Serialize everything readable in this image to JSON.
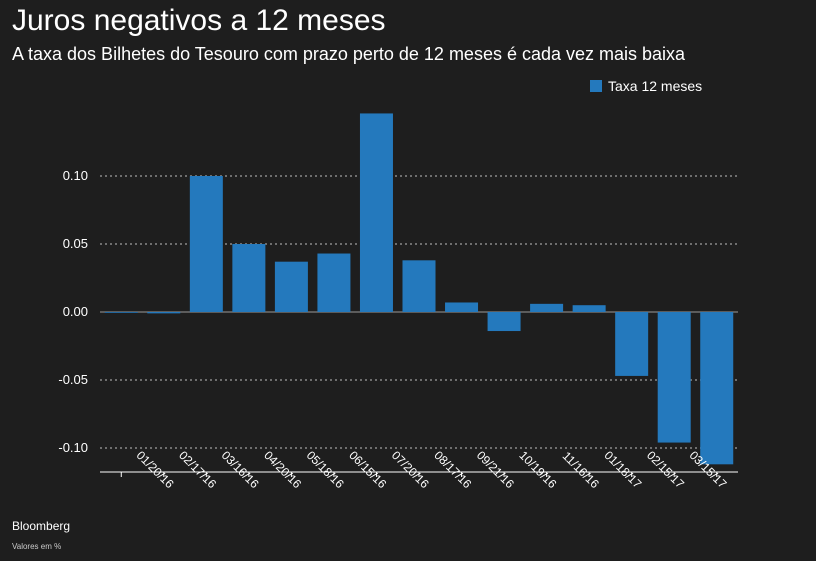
{
  "chart_data": {
    "type": "bar",
    "title": "Juros negativos a 12 meses",
    "subtitle": "A taxa dos Bilhetes do Tesouro com prazo perto de 12 meses é cada vez mais baixa",
    "categories": [
      "",
      "01/20/16",
      "02/17/16",
      "03/16/16",
      "04/20/16",
      "05/18/16",
      "06/15/16",
      "07/20/16",
      "08/17/16",
      "09/21/16",
      "10/19/16",
      "11/16/16",
      "01/18/17",
      "02/15/17",
      "03/15/17"
    ],
    "series": [
      {
        "name": "Taxa 12 meses",
        "color": "#2479bd",
        "values": [
          0.0,
          -0.001,
          0.1,
          0.05,
          0.037,
          0.043,
          0.146,
          0.038,
          0.007,
          -0.014,
          0.006,
          0.005,
          -0.047,
          -0.096,
          -0.112
        ]
      }
    ],
    "yticks": [
      "0.10",
      "0.05",
      "0.00",
      "-0.05",
      "-0.10"
    ],
    "ytick_values": [
      0.1,
      0.05,
      0.0,
      -0.05,
      -0.1
    ],
    "ylim": [
      -0.118,
      0.155
    ],
    "legend_position": "top-right",
    "grid": true
  },
  "footer": {
    "source": "Bloomberg",
    "note": "Valores em %"
  }
}
